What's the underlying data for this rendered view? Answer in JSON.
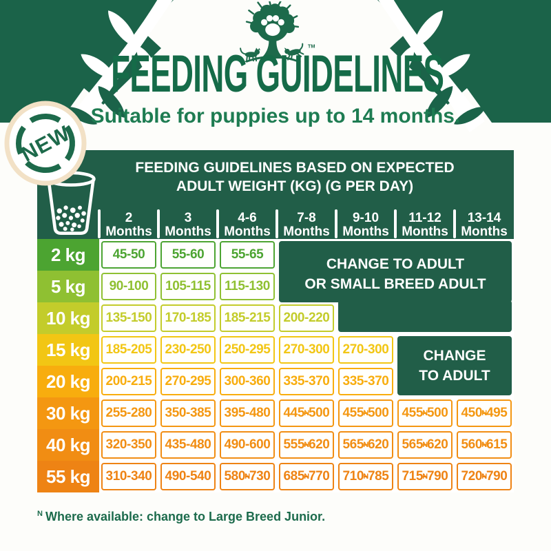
{
  "brand": {
    "logo": "tree-with-pawprint-cat-and-dog-logo",
    "trademark": "TM"
  },
  "badge": {
    "label": "NEW"
  },
  "title": "FEEDING GUIDELINES",
  "subtitle": "Suitable for puppies up to 14 months.",
  "colors": {
    "dark_green": "#215e48",
    "decoration_green": "#1b6349",
    "title_green": "#156b48",
    "subtitle_green": "#1e7c52",
    "footnote_green": "#1c6b4c",
    "badge_cream_ring": "#f2e1c6"
  },
  "chart_data": {
    "type": "table",
    "title_line1": "FEEDING GUIDELINES BASED ON EXPECTED",
    "title_line2": "ADULT WEIGHT (KG) (G PER DAY)",
    "unit": "g per day",
    "columns": [
      {
        "line1": "2",
        "line2": "Months"
      },
      {
        "line1": "3",
        "line2": "Months"
      },
      {
        "line1": "4-6",
        "line2": "Months"
      },
      {
        "line1": "7-8",
        "line2": "Months"
      },
      {
        "line1": "9-10",
        "line2": "Months"
      },
      {
        "line1": "11-12",
        "line2": "Months"
      },
      {
        "line1": "13-14",
        "line2": "Months"
      }
    ],
    "rows": [
      {
        "label": "2 kg",
        "color": "#4ca431",
        "cells": [
          {
            "v": "45-50"
          },
          {
            "v": "55-60"
          },
          {
            "v": "55-65"
          }
        ]
      },
      {
        "label": "5 kg",
        "color": "#8fc032",
        "cells": [
          {
            "v": "90-100"
          },
          {
            "v": "105-115"
          },
          {
            "v": "115-130"
          }
        ]
      },
      {
        "label": "10 kg",
        "color": "#c3cc2b",
        "cells": [
          {
            "v": "135-150"
          },
          {
            "v": "170-185"
          },
          {
            "v": "185-215"
          },
          {
            "v": "200-220"
          }
        ]
      },
      {
        "label": "15 kg",
        "color": "#f2c614",
        "cells": [
          {
            "v": "185-205"
          },
          {
            "v": "230-250"
          },
          {
            "v": "250-295"
          },
          {
            "v": "270-300"
          },
          {
            "v": "270-300"
          }
        ]
      },
      {
        "label": "20 kg",
        "color": "#f8ad0e",
        "cells": [
          {
            "v": "200-215"
          },
          {
            "v": "270-295"
          },
          {
            "v": "300-360"
          },
          {
            "v": "335-370"
          },
          {
            "v": "335-370"
          }
        ]
      },
      {
        "label": "30 kg",
        "color": "#f49711",
        "cells": [
          {
            "v": "255-280"
          },
          {
            "v": "350-385"
          },
          {
            "v": "395-480"
          },
          {
            "v": "445-500",
            "n": true
          },
          {
            "v": "455-500",
            "n": true
          },
          {
            "v": "455-500",
            "n": true
          },
          {
            "v": "450-495",
            "n": true
          }
        ]
      },
      {
        "label": "40 kg",
        "color": "#f18d13",
        "cells": [
          {
            "v": "320-350"
          },
          {
            "v": "435-480"
          },
          {
            "v": "490-600"
          },
          {
            "v": "555-620",
            "n": true
          },
          {
            "v": "565-620",
            "n": true
          },
          {
            "v": "565-620",
            "n": true
          },
          {
            "v": "560-615",
            "n": true
          }
        ]
      },
      {
        "label": "55 kg",
        "color": "#ee8314",
        "cells": [
          {
            "v": "310-340"
          },
          {
            "v": "490-540"
          },
          {
            "v": "580-730",
            "n": true
          },
          {
            "v": "685-770",
            "n": true
          },
          {
            "v": "710-785",
            "n": true
          },
          {
            "v": "715-790",
            "n": true
          },
          {
            "v": "720-790",
            "n": true
          }
        ]
      }
    ],
    "merged": {
      "small_breed": {
        "line1": "CHANGE TO ADULT",
        "line2": "OR SMALL BREED ADULT",
        "applies": "2-10 kg rows from 7-8 months onward (10 kg from 9-10 months)"
      },
      "adult": {
        "line1": "CHANGE",
        "line2": "TO ADULT",
        "applies": "15-20 kg rows from 11-12 months onward"
      }
    },
    "footnote": {
      "marker": "N",
      "text": "Where available: change to Large Breed Junior."
    }
  }
}
